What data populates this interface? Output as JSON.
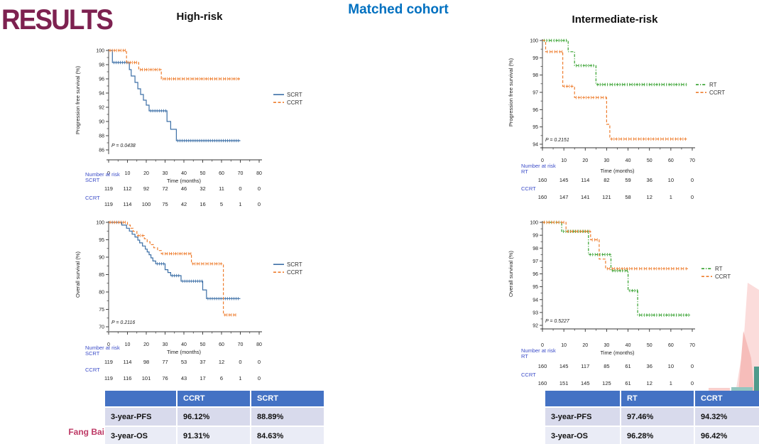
{
  "slide": {
    "results_title": "RESULTS",
    "cohort_title": "Matched cohort",
    "left_group_title": "High-risk",
    "right_group_title": "Intermediate-risk",
    "author": "Fang Bai"
  },
  "colors": {
    "results_title": "#7D2150",
    "cohort_title": "#0070C0",
    "scrt": "#3C6FA6",
    "ccrt": "#EE7D2E",
    "rt": "#33A02C",
    "risk_label": "#3B4CC8",
    "axis": "#333333",
    "table_header_bg": "#4472C4",
    "table_row1_bg": "#D8DAEC",
    "table_row2_bg": "#EAECF6",
    "author": "#BE3A66"
  },
  "chart_data": [
    {
      "id": "high-risk-pfs",
      "type": "line",
      "step": true,
      "title": "High-risk progression free survival",
      "ylabel": "Progression free survival (%)",
      "xlabel": "Time (months)",
      "ylim": [
        86,
        100
      ],
      "yticks": [
        86,
        88,
        90,
        92,
        94,
        96,
        98,
        100
      ],
      "xlim": [
        0,
        80
      ],
      "xticks": [
        0,
        10,
        20,
        30,
        40,
        50,
        60,
        70,
        80
      ],
      "p_value": "P = 0.0438",
      "legend_position": "right",
      "grid": false,
      "series": [
        {
          "name": "SCRT",
          "color_key": "scrt",
          "dash": "solid",
          "points": [
            [
              0,
              100
            ],
            [
              2,
              98.3
            ],
            [
              11,
              97.3
            ],
            [
              12,
              96.4
            ],
            [
              14,
              95.5
            ],
            [
              15.5,
              94.6
            ],
            [
              17,
              93.8
            ],
            [
              18.5,
              93.0
            ],
            [
              20,
              92.3
            ],
            [
              21.5,
              91.5
            ],
            [
              31,
              90.0
            ],
            [
              33,
              88.9
            ],
            [
              36,
              87.3
            ],
            [
              70,
              87.3
            ]
          ]
        },
        {
          "name": "CCRT",
          "color_key": "ccrt",
          "dash": "dashed",
          "points": [
            [
              0,
              100
            ],
            [
              9.5,
              98.3
            ],
            [
              16,
              97.3
            ],
            [
              28,
              96.0
            ],
            [
              70,
              96.0
            ]
          ]
        }
      ],
      "at_risk": {
        "label": "Number at risk",
        "rows": [
          {
            "name": "SCRT",
            "values": [
              119,
              112,
              92,
              72,
              46,
              32,
              11,
              0,
              0
            ]
          },
          {
            "name": "CCRT",
            "values": [
              119,
              114,
              100,
              75,
              42,
              16,
              5,
              1,
              0
            ]
          }
        ]
      }
    },
    {
      "id": "high-risk-os",
      "type": "line",
      "step": true,
      "title": "High-risk overall survival",
      "ylabel": "Overall survival (%)",
      "xlabel": "Time (months)",
      "ylim": [
        70,
        100
      ],
      "yticks": [
        70,
        75,
        80,
        85,
        90,
        95,
        100
      ],
      "xlim": [
        0,
        80
      ],
      "xticks": [
        0,
        10,
        20,
        30,
        40,
        50,
        60,
        70,
        80
      ],
      "p_value": "P = 0.2116",
      "legend_position": "right",
      "grid": false,
      "series": [
        {
          "name": "SCRT",
          "color_key": "scrt",
          "dash": "solid",
          "points": [
            [
              0,
              100
            ],
            [
              7,
              99.2
            ],
            [
              9.5,
              98.3
            ],
            [
              11,
              97.5
            ],
            [
              12.5,
              96.6
            ],
            [
              14,
              95.8
            ],
            [
              15.5,
              94.9
            ],
            [
              16.5,
              94.1
            ],
            [
              18,
              93.2
            ],
            [
              19.5,
              92.3
            ],
            [
              20.5,
              91.5
            ],
            [
              21.5,
              90.7
            ],
            [
              22.5,
              89.8
            ],
            [
              23.5,
              88.9
            ],
            [
              25,
              88.1
            ],
            [
              30,
              86.4
            ],
            [
              31.5,
              85.6
            ],
            [
              33,
              84.7
            ],
            [
              38.5,
              83.1
            ],
            [
              50,
              80.6
            ],
            [
              52,
              78.1
            ],
            [
              70,
              78.1
            ]
          ]
        },
        {
          "name": "CCRT",
          "color_key": "ccrt",
          "dash": "dashed",
          "points": [
            [
              0,
              100
            ],
            [
              10,
              99.2
            ],
            [
              11.5,
              98.3
            ],
            [
              13,
              97.4
            ],
            [
              15,
              96.2
            ],
            [
              19,
              95.3
            ],
            [
              20.5,
              94.4
            ],
            [
              22,
              93.6
            ],
            [
              24,
              92.7
            ],
            [
              26,
              91.9
            ],
            [
              28,
              91.0
            ],
            [
              44,
              88.1
            ],
            [
              61,
              73.4
            ],
            [
              68,
              73.4
            ]
          ]
        }
      ],
      "at_risk": {
        "label": "Number at risk",
        "rows": [
          {
            "name": "SCRT",
            "values": [
              119,
              114,
              98,
              77,
              53,
              37,
              12,
              0,
              0
            ]
          },
          {
            "name": "CCRT",
            "values": [
              119,
              116,
              101,
              76,
              43,
              17,
              6,
              1,
              0
            ]
          }
        ]
      }
    },
    {
      "id": "int-risk-pfs",
      "type": "line",
      "step": true,
      "title": "Intermediate-risk progression free survival",
      "ylabel": "Progression free survival (%)",
      "xlabel": "Time (months)",
      "ylim": [
        94,
        100
      ],
      "yticks": [
        94,
        95,
        96,
        97,
        98,
        99,
        100
      ],
      "xlim": [
        0,
        70
      ],
      "xticks": [
        0,
        10,
        20,
        30,
        40,
        50,
        60,
        70
      ],
      "p_value": "P = 0.2151",
      "legend_position": "right",
      "grid": false,
      "series": [
        {
          "name": "RT",
          "color_key": "rt",
          "dash": "dashdot",
          "points": [
            [
              0,
              100
            ],
            [
              12,
              99.35
            ],
            [
              15,
              98.55
            ],
            [
              25,
              97.45
            ],
            [
              68,
              97.45
            ]
          ]
        },
        {
          "name": "CCRT",
          "color_key": "ccrt",
          "dash": "dashed",
          "points": [
            [
              0,
              100
            ],
            [
              1.5,
              99.35
            ],
            [
              9.5,
              97.35
            ],
            [
              15,
              96.7
            ],
            [
              30,
              95.15
            ],
            [
              31.5,
              94.3
            ],
            [
              68,
              94.3
            ]
          ]
        }
      ],
      "at_risk": {
        "label": "Number at risk",
        "rows": [
          {
            "name": "RT",
            "values": [
              160,
              145,
              114,
              82,
              59,
              36,
              10,
              0
            ]
          },
          {
            "name": "CCRT",
            "values": [
              160,
              147,
              141,
              121,
              58,
              12,
              1,
              0
            ]
          }
        ]
      }
    },
    {
      "id": "int-risk-os",
      "type": "line",
      "step": true,
      "title": "Intermediate-risk overall survival",
      "ylabel": "Overall survival (%)",
      "xlabel": "Time (months)",
      "ylim": [
        92,
        100
      ],
      "yticks": [
        92,
        93,
        94,
        95,
        96,
        97,
        98,
        99,
        100
      ],
      "xlim": [
        0,
        70
      ],
      "xticks": [
        0,
        10,
        20,
        30,
        40,
        50,
        60,
        70
      ],
      "p_value": "P = 0.5227",
      "legend_position": "right",
      "grid": false,
      "series": [
        {
          "name": "RT",
          "color_key": "rt",
          "dash": "dashdot",
          "points": [
            [
              0,
              100
            ],
            [
              9,
              99.3
            ],
            [
              21.5,
              97.5
            ],
            [
              32,
              96.25
            ],
            [
              40,
              94.7
            ],
            [
              44.5,
              92.8
            ],
            [
              69,
              92.8
            ]
          ]
        },
        {
          "name": "CCRT",
          "color_key": "ccrt",
          "dash": "dashed",
          "points": [
            [
              0,
              100
            ],
            [
              11,
              99.3
            ],
            [
              22.5,
              98.65
            ],
            [
              26.5,
              97.15
            ],
            [
              29.5,
              96.4
            ],
            [
              68,
              96.4
            ]
          ]
        }
      ],
      "at_risk": {
        "label": "Number at risk",
        "rows": [
          {
            "name": "RT",
            "values": [
              160,
              145,
              117,
              85,
              61,
              36,
              10,
              0
            ]
          },
          {
            "name": "CCRT",
            "values": [
              160,
              151,
              145,
              125,
              61,
              12,
              1,
              0
            ]
          }
        ]
      }
    }
  ],
  "tables": {
    "left": {
      "headers": [
        "",
        "CCRT",
        "SCRT"
      ],
      "rows": [
        [
          "3-year-PFS",
          "96.12%",
          "88.89%"
        ],
        [
          "3-year-OS",
          "91.31%",
          "84.63%"
        ]
      ]
    },
    "right": {
      "headers": [
        "",
        "RT",
        "CCRT"
      ],
      "rows": [
        [
          "3-year-PFS",
          "97.46%",
          "94.32%"
        ],
        [
          "3-year-OS",
          "96.28%",
          "96.42%"
        ]
      ]
    }
  }
}
